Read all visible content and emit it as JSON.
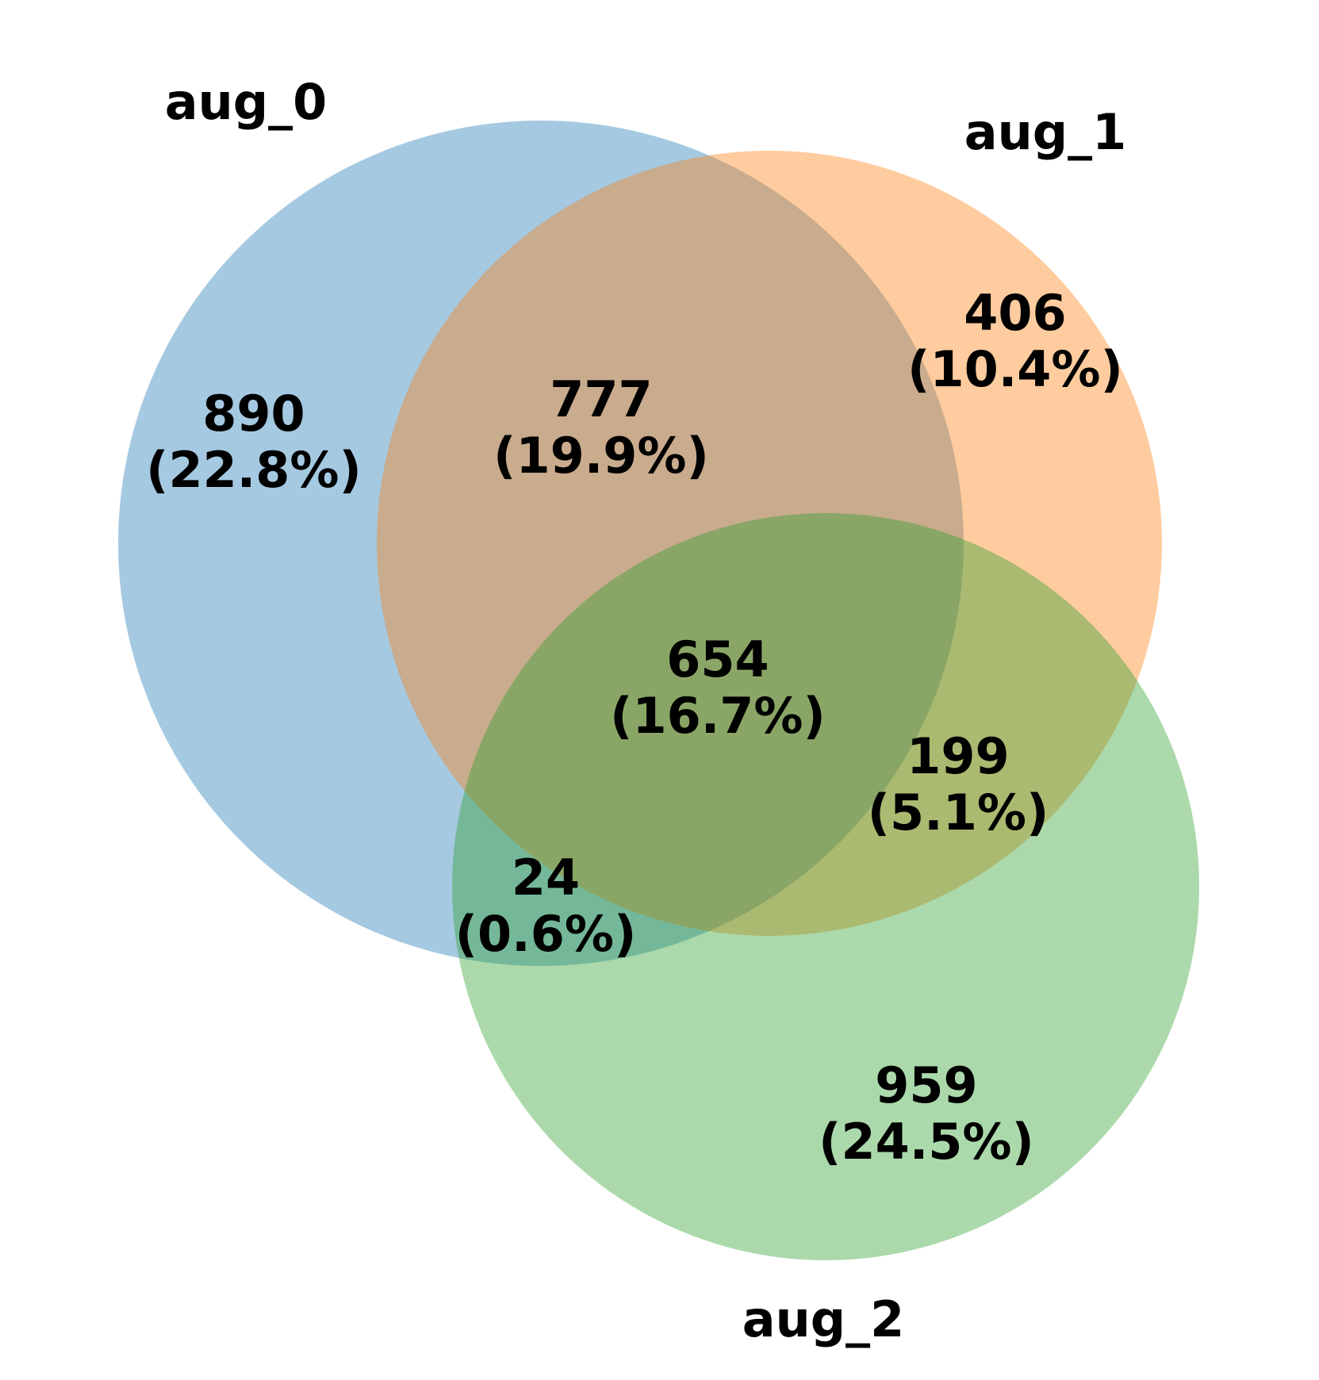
{
  "sets": [
    {
      "key": "aug_0",
      "label": "aug_0",
      "color": "#1f77b4"
    },
    {
      "key": "aug_1",
      "label": "aug_1",
      "color": "#ff7f0e"
    },
    {
      "key": "aug_2",
      "label": "aug_2",
      "color": "#2ca02c"
    }
  ],
  "regions": [
    {
      "sets": [
        "aug_0"
      ],
      "count": "890",
      "percent": "(22.8%)"
    },
    {
      "sets": [
        "aug_1"
      ],
      "count": "406",
      "percent": "(10.4%)"
    },
    {
      "sets": [
        "aug_0",
        "aug_1"
      ],
      "count": "777",
      "percent": "(19.9%)"
    },
    {
      "sets": [
        "aug_0",
        "aug_1",
        "aug_2"
      ],
      "count": "654",
      "percent": "(16.7%)"
    },
    {
      "sets": [
        "aug_1",
        "aug_2"
      ],
      "count": "199",
      "percent": "(5.1%)"
    },
    {
      "sets": [
        "aug_0",
        "aug_2"
      ],
      "count": "24",
      "percent": "(0.6%)"
    },
    {
      "sets": [
        "aug_2"
      ],
      "count": "959",
      "percent": "(24.5%)"
    }
  ],
  "fill_opacity": 0.4
}
